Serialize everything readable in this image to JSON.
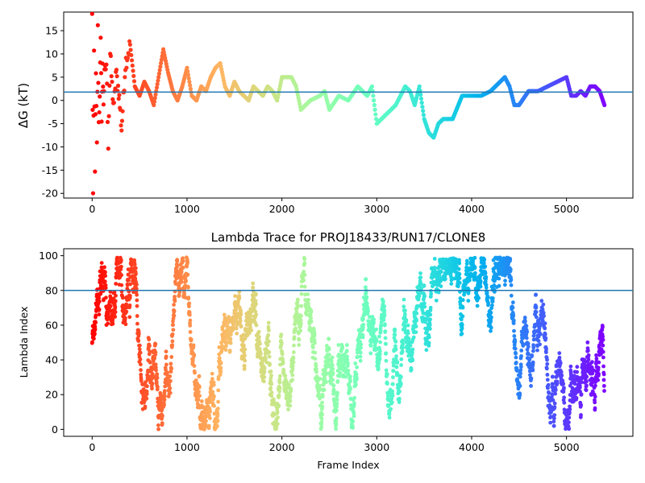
{
  "chart_data": [
    {
      "type": "scatter",
      "title": "",
      "xlabel": "",
      "ylabel": "ΔG (kT)",
      "xlim": [
        -300,
        5700
      ],
      "ylim": [
        -21,
        19
      ],
      "xticks": [
        0,
        1000,
        2000,
        3000,
        4000,
        5000
      ],
      "yticks": [
        -20,
        -15,
        -10,
        -5,
        0,
        5,
        10,
        15
      ],
      "colormap": "rainbow",
      "frame_count": 5400,
      "hline": {
        "y": 1.8,
        "color": "#1f77b4"
      },
      "series": [
        {
          "x": [
            0,
            10,
            20,
            30,
            40,
            50,
            60,
            70,
            80,
            90,
            100,
            110,
            120,
            130,
            150,
            170,
            190,
            210,
            230,
            250,
            280,
            310,
            350,
            400,
            450,
            500,
            550,
            600,
            650,
            700,
            750,
            800,
            850,
            900,
            950,
            1000,
            1050,
            1100,
            1150,
            1200,
            1250,
            1300,
            1350,
            1400,
            1450,
            1500,
            1550,
            1600,
            1650,
            1700,
            1750,
            1800,
            1850,
            1900,
            1950,
            2000,
            2100,
            2150,
            2200,
            2300,
            2400,
            2450,
            2500,
            2600,
            2700,
            2800,
            2900,
            2950,
            3000,
            3050,
            3100,
            3200,
            3250,
            3300,
            3350,
            3400,
            3450,
            3500,
            3550,
            3600,
            3650,
            3700,
            3800,
            3900,
            4000,
            4100,
            4200,
            4300,
            4350,
            4400,
            4450,
            4500,
            4600,
            4700,
            4800,
            4900,
            5000,
            5050,
            5100,
            5150,
            5200,
            5250,
            5300,
            5350,
            5400
          ],
          "y": [
            18,
            -20.5,
            10,
            -14,
            5,
            -10,
            15,
            -5,
            2,
            12,
            -3,
            7,
            0,
            5,
            8,
            -9,
            10,
            3,
            -2,
            6,
            2,
            -6,
            8,
            12,
            3,
            1,
            4,
            2,
            -1,
            5,
            11,
            6,
            2,
            0,
            3,
            7,
            1,
            0,
            3,
            2,
            5,
            7,
            8,
            3,
            1,
            4,
            2,
            1,
            0,
            3,
            2,
            1,
            3,
            2,
            0,
            5,
            5,
            3,
            -2,
            0,
            1,
            2,
            -2,
            1,
            0,
            3,
            1,
            3,
            -5,
            -4,
            -3,
            -1,
            1,
            3,
            2,
            -1,
            3,
            -4,
            -7,
            -8,
            -5,
            -4,
            -4,
            1,
            1,
            1,
            2,
            4,
            5,
            3,
            -1,
            -1,
            2,
            2,
            3,
            4,
            5,
            1,
            1,
            2,
            1,
            3,
            3,
            2,
            -1
          ]
        }
      ]
    },
    {
      "type": "scatter",
      "title": "Lambda Trace for PROJ18433/RUN17/CLONE8",
      "xlabel": "Frame Index",
      "ylabel": "Lambda Index",
      "xlim": [
        -300,
        5700
      ],
      "ylim": [
        -4,
        104
      ],
      "xticks": [
        0,
        1000,
        2000,
        3000,
        4000,
        5000
      ],
      "yticks": [
        0,
        20,
        40,
        60,
        80,
        100
      ],
      "colormap": "rainbow",
      "frame_count": 5400,
      "hline": {
        "y": 80,
        "color": "#1f77b4"
      },
      "point_count": 5400,
      "y_range_of_points": [
        0,
        99
      ]
    }
  ]
}
